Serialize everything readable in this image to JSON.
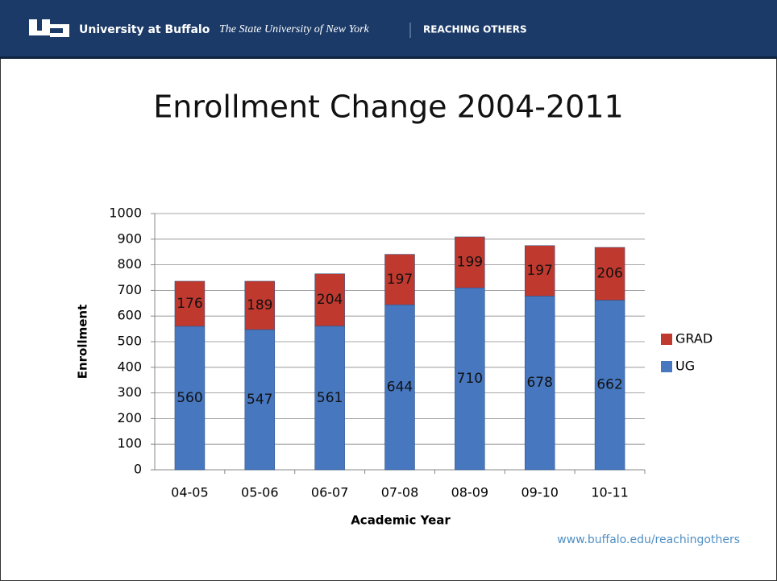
{
  "header": {
    "university": "University at Buffalo",
    "system": "The State University of New York",
    "tagline": "REACHING OTHERS"
  },
  "footer_url": "www.buffalo.edu/reachingothers",
  "chart_data": {
    "type": "stacked_bar",
    "title": "Enrollment Change 2004-2011",
    "x_label": "Academic Year",
    "y_label": "Enrollment",
    "categories": [
      "04-05",
      "05-06",
      "06-07",
      "07-08",
      "08-09",
      "09-10",
      "10-11"
    ],
    "series": [
      {
        "name": "UG",
        "color": "#4677bf",
        "values": [
          560,
          547,
          561,
          644,
          710,
          678,
          662
        ]
      },
      {
        "name": "GRAD",
        "color": "#c0392f",
        "values": [
          176,
          189,
          204,
          197,
          199,
          197,
          206
        ]
      }
    ],
    "ylim": [
      0,
      1000
    ],
    "yticks": [
      0,
      100,
      200,
      300,
      400,
      500,
      600,
      700,
      800,
      900,
      1000
    ],
    "grid": true,
    "legend": "right"
  }
}
